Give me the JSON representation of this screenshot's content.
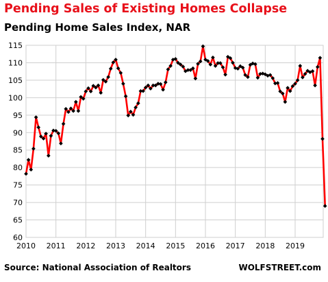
{
  "title": "Pending Sales of Existing Homes Collapse",
  "subtitle": "Pending Home Sales Index, NAR",
  "source": "Source: National Association of Realtors",
  "brand": "WOLFSTREET.com",
  "colors": {
    "title": "#e8101a",
    "line": "#ff0000",
    "marker": "#000000",
    "grid": "#cfcfcf"
  },
  "chart_data": {
    "type": "line",
    "title": "Pending Sales of Existing Homes Collapse",
    "subtitle": "Pending Home Sales Index, NAR",
    "xlabel": "",
    "ylabel": "",
    "xlim": [
      2010,
      2020.0
    ],
    "ylim": [
      60,
      115
    ],
    "x_ticks": [
      2010,
      2011,
      2012,
      2013,
      2014,
      2015,
      2016,
      2017,
      2018,
      2019
    ],
    "y_ticks": [
      60,
      65,
      70,
      75,
      80,
      85,
      90,
      95,
      100,
      105,
      110,
      115
    ],
    "grid": true,
    "legend": "none",
    "series": [
      {
        "start": "2010-01",
        "frequency": "monthly",
        "values": [
          78.2,
          82.2,
          79.4,
          85.4,
          94.4,
          91.5,
          88.9,
          88.3,
          89.7,
          83.4,
          89.1,
          90.6,
          90.5,
          89.8,
          86.9,
          92.5,
          96.8,
          95.9,
          96.9,
          96.2,
          98.8,
          96.2,
          100.2,
          99.7,
          101.8,
          102.7,
          101.8,
          103.4,
          102.9,
          103.5,
          101.4,
          105.1,
          104.6,
          105.9,
          108.3,
          110.1,
          110.9,
          108.4,
          107.1,
          104.0,
          100.4,
          94.9,
          96.0,
          95.1,
          97.2,
          98.4,
          101.9,
          101.9,
          102.9,
          103.5,
          102.6,
          103.5,
          103.5,
          104.0,
          103.9,
          102.3,
          104.4,
          108.1,
          109.1,
          110.9,
          111.1,
          110.0,
          109.5,
          108.9,
          107.6,
          107.9,
          107.9,
          108.4,
          105.5,
          109.7,
          110.4,
          114.7,
          110.9,
          110.5,
          109.5,
          111.5,
          109.1,
          109.9,
          109.9,
          108.7,
          106.6,
          111.7,
          111.3,
          110.0,
          108.5,
          108.3,
          109.0,
          108.6,
          106.5,
          105.9,
          109.4,
          109.8,
          109.6,
          105.7,
          106.8,
          106.9,
          106.7,
          106.3,
          106.5,
          105.6,
          104.1,
          104.2,
          101.8,
          101.2,
          98.8,
          102.8,
          101.9,
          103.3,
          104.0,
          105.0,
          109.1,
          105.8,
          106.8,
          107.7,
          107.3,
          107.6,
          103.5,
          108.8,
          111.4,
          88.2,
          69.0
        ]
      }
    ]
  }
}
